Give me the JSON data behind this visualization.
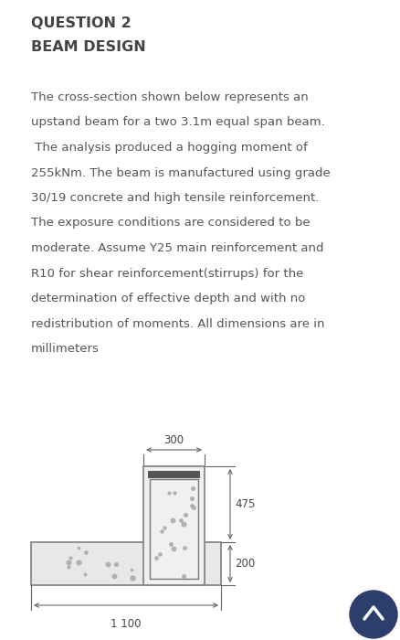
{
  "title_line1": "QUESTION 2",
  "title_line2": "BEAM DESIGN",
  "body_text": "The cross-section shown below represents an upstand beam for a two 3.1m equal span beam.  The analysis produced a hogging moment of 255kNm. The beam is manufactured using grade 30/19 concrete and high tensile reinforcement. The exposure conditions are considered to be moderate. Assume Y25 main reinforcement and R10 for shear reinforcement(stirrups) for the determination of effective depth and with no redistribution of moments. All dimensions are in millimeters",
  "bg_color": "#ffffff",
  "text_color": "#555555",
  "title_color": "#444444",
  "dim_300": "300",
  "dim_475": "475",
  "dim_200": "200",
  "dim_1100": "1 100",
  "scroll_btn_color": "#2c3e6b",
  "outline_color": "#888888",
  "fill_web": "#f0f0f0",
  "fill_flange": "#e8e8e8"
}
